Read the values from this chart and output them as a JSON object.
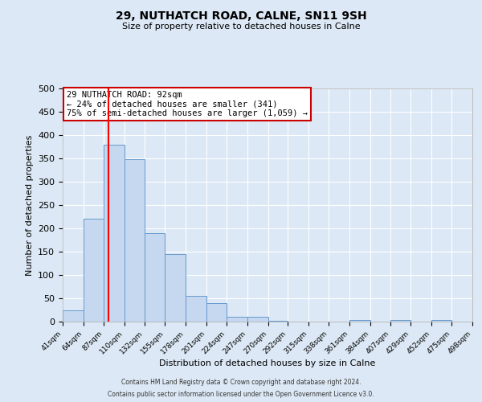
{
  "title": "29, NUTHATCH ROAD, CALNE, SN11 9SH",
  "subtitle": "Size of property relative to detached houses in Calne",
  "xlabel": "Distribution of detached houses by size in Calne",
  "ylabel": "Number of detached properties",
  "bin_edges": [
    41,
    64,
    87,
    110,
    132,
    155,
    178,
    201,
    224,
    247,
    270,
    292,
    315,
    338,
    361,
    384,
    407,
    429,
    452,
    475,
    498
  ],
  "bar_heights": [
    25,
    220,
    380,
    348,
    190,
    145,
    55,
    40,
    10,
    10,
    2,
    0,
    0,
    0,
    4,
    0,
    4,
    0,
    4,
    0
  ],
  "bar_color": "#c5d8f0",
  "bar_edge_color": "#6699cc",
  "red_line_x": 92,
  "ylim": [
    0,
    500
  ],
  "yticks": [
    0,
    50,
    100,
    150,
    200,
    250,
    300,
    350,
    400,
    450,
    500
  ],
  "annotation_title": "29 NUTHATCH ROAD: 92sqm",
  "annotation_line1": "← 24% of detached houses are smaller (341)",
  "annotation_line2": "75% of semi-detached houses are larger (1,059) →",
  "annotation_box_color": "#ffffff",
  "annotation_border_color": "#cc0000",
  "footer_line1": "Contains HM Land Registry data © Crown copyright and database right 2024.",
  "footer_line2": "Contains public sector information licensed under the Open Government Licence v3.0.",
  "background_color": "#dce8f5",
  "plot_bg_color": "#dce8f5"
}
